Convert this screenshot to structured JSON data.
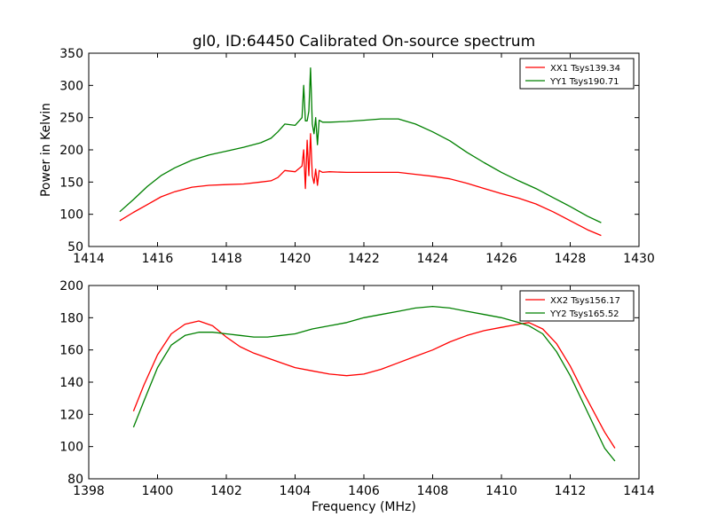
{
  "title": "gl0, ID:64450 Calibrated On-source spectrum",
  "colors": {
    "xx": "#ff0000",
    "yy": "#008000"
  },
  "chart_data": [
    {
      "type": "line",
      "title": "gl0, ID:64450 Calibrated On-source spectrum",
      "xlabel": "",
      "ylabel": "Power in Kelvin",
      "xlim": [
        1414,
        1430
      ],
      "ylim": [
        50,
        350
      ],
      "xticks": [
        "1414",
        "1416",
        "1418",
        "1420",
        "1422",
        "1424",
        "1426",
        "1428",
        "1430"
      ],
      "yticks": [
        "50",
        "100",
        "150",
        "200",
        "250",
        "300",
        "350"
      ],
      "legend_position": "top-right",
      "series": [
        {
          "name": "XX1 Tsys139.34",
          "color": "#ff0000",
          "x": [
            1414.9,
            1415.3,
            1415.7,
            1416.1,
            1416.5,
            1417.0,
            1417.5,
            1418.0,
            1418.5,
            1419.0,
            1419.3,
            1419.5,
            1419.7,
            1420.0,
            1420.2,
            1420.25,
            1420.3,
            1420.35,
            1420.4,
            1420.45,
            1420.5,
            1420.55,
            1420.6,
            1420.65,
            1420.7,
            1420.8,
            1421.0,
            1421.5,
            1422.0,
            1422.5,
            1423.0,
            1423.5,
            1424.0,
            1424.5,
            1425.0,
            1425.5,
            1426.0,
            1426.5,
            1427.0,
            1427.5,
            1428.0,
            1428.5,
            1428.9
          ],
          "y": [
            90,
            103,
            115,
            127,
            135,
            142,
            145,
            146,
            147,
            150,
            152,
            157,
            168,
            166,
            175,
            200,
            140,
            215,
            160,
            225,
            160,
            148,
            170,
            145,
            168,
            165,
            166,
            165,
            165,
            165,
            165,
            162,
            159,
            155,
            148,
            140,
            132,
            125,
            116,
            104,
            90,
            76,
            67
          ]
        },
        {
          "name": "YY1 Tsys190.71",
          "color": "#008000",
          "x": [
            1414.9,
            1415.3,
            1415.7,
            1416.1,
            1416.5,
            1417.0,
            1417.5,
            1418.0,
            1418.5,
            1419.0,
            1419.3,
            1419.5,
            1419.7,
            1420.0,
            1420.2,
            1420.25,
            1420.3,
            1420.35,
            1420.4,
            1420.45,
            1420.5,
            1420.55,
            1420.6,
            1420.65,
            1420.7,
            1420.8,
            1421.0,
            1421.5,
            1422.0,
            1422.5,
            1423.0,
            1423.5,
            1424.0,
            1424.5,
            1425.0,
            1425.5,
            1426.0,
            1426.5,
            1427.0,
            1427.5,
            1428.0,
            1428.5,
            1428.9
          ],
          "y": [
            104,
            123,
            143,
            160,
            172,
            184,
            192,
            198,
            204,
            211,
            218,
            228,
            240,
            238,
            250,
            300,
            245,
            245,
            260,
            327,
            240,
            225,
            250,
            208,
            246,
            243,
            243,
            244,
            246,
            248,
            248,
            240,
            228,
            214,
            196,
            180,
            165,
            152,
            140,
            126,
            112,
            97,
            87
          ]
        }
      ]
    },
    {
      "type": "line",
      "title": "",
      "xlabel": "Frequency (MHz)",
      "ylabel": "",
      "xlim": [
        1398,
        1414
      ],
      "ylim": [
        80,
        200
      ],
      "xticks": [
        "1398",
        "1400",
        "1402",
        "1404",
        "1406",
        "1408",
        "1410",
        "1412",
        "1414"
      ],
      "yticks": [
        "80",
        "100",
        "120",
        "140",
        "160",
        "180",
        "200"
      ],
      "legend_position": "top-right",
      "series": [
        {
          "name": "XX2 Tsys156.17",
          "color": "#ff0000",
          "x": [
            1399.3,
            1399.6,
            1400.0,
            1400.4,
            1400.8,
            1401.2,
            1401.6,
            1402.0,
            1402.4,
            1402.8,
            1403.2,
            1403.6,
            1404.0,
            1404.5,
            1405.0,
            1405.5,
            1406.0,
            1406.5,
            1407.0,
            1407.5,
            1408.0,
            1408.5,
            1409.0,
            1409.5,
            1410.0,
            1410.5,
            1410.8,
            1411.2,
            1411.6,
            1412.0,
            1412.4,
            1412.8,
            1413.0,
            1413.3
          ],
          "y": [
            122,
            138,
            157,
            170,
            176,
            178,
            175,
            168,
            162,
            158,
            155,
            152,
            149,
            147,
            145,
            144,
            145,
            148,
            152,
            156,
            160,
            165,
            169,
            172,
            174,
            176,
            177,
            173,
            164,
            150,
            133,
            117,
            109,
            99
          ]
        },
        {
          "name": "YY2 Tsys165.52",
          "color": "#008000",
          "x": [
            1399.3,
            1399.6,
            1400.0,
            1400.4,
            1400.8,
            1401.2,
            1401.6,
            1402.0,
            1402.4,
            1402.8,
            1403.2,
            1403.6,
            1404.0,
            1404.5,
            1405.0,
            1405.5,
            1406.0,
            1406.5,
            1407.0,
            1407.5,
            1408.0,
            1408.5,
            1409.0,
            1409.5,
            1410.0,
            1410.5,
            1410.8,
            1411.2,
            1411.6,
            1412.0,
            1412.4,
            1412.8,
            1413.0,
            1413.3
          ],
          "y": [
            112,
            128,
            149,
            163,
            169,
            171,
            171,
            170,
            169,
            168,
            168,
            169,
            170,
            173,
            175,
            177,
            180,
            182,
            184,
            186,
            187,
            186,
            184,
            182,
            180,
            177,
            175,
            170,
            159,
            144,
            126,
            108,
            99,
            91
          ]
        }
      ]
    }
  ]
}
